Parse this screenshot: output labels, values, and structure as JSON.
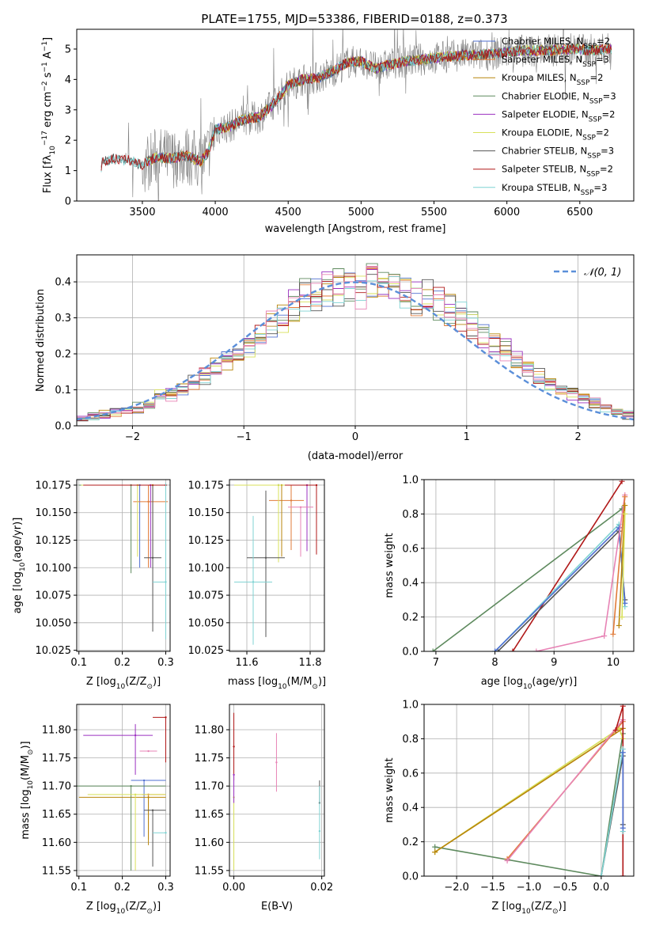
{
  "title": "PLATE=1755, MJD=53386, FIBERID=0188, z=0.373",
  "colors": {
    "Chabrier MILES": "#4f6fd0",
    "Salpeter MILES": "#e07b39",
    "Kroupa MILES": "#b8860b",
    "Chabrier ELODIE": "#5e8a5e",
    "Salpeter ELODIE": "#9b30c0",
    "Kroupa ELODIE": "#d8e05a",
    "Chabrier STELIB": "#555555",
    "Salpeter STELIB": "#b01818",
    "Kroupa STELIB": "#7fd3d3",
    "pink": "#e783b5",
    "data": "#808080",
    "gaussian": "#5b8fd9"
  },
  "chart_data": [
    {
      "id": "spectrum",
      "type": "line",
      "title": "PLATE=1755, MJD=53386, FIBERID=0188, z=0.373",
      "xlabel": "wavelength [Angstrom, rest frame]",
      "ylabel_parts": [
        "Flux [f",
        "λ",
        "10",
        "−17",
        " erg cm",
        "−2",
        " s",
        "−1",
        " A",
        "−1",
        "]"
      ],
      "xlim": [
        3050,
        6870
      ],
      "ylim": [
        0,
        5.65
      ],
      "xticks": [
        3500,
        4000,
        4500,
        5000,
        5500,
        6000,
        6500
      ],
      "yticks": [
        0,
        1,
        2,
        3,
        4,
        5
      ],
      "model_continuum": {
        "x": [
          3200,
          3220,
          3300,
          3400,
          3500,
          3600,
          3700,
          3800,
          3900,
          3950,
          4000,
          4100,
          4200,
          4300,
          4400,
          4500,
          4600,
          4700,
          4800,
          4900,
          5000,
          5100,
          5200,
          5300,
          5400,
          5500,
          5600,
          5700,
          5800,
          5900,
          6000,
          6100,
          6200,
          6300,
          6400,
          6500,
          6600,
          6700
        ],
        "y": [
          0.0,
          1.25,
          1.4,
          1.35,
          1.2,
          1.45,
          1.4,
          1.5,
          1.3,
          1.6,
          2.35,
          2.45,
          2.7,
          2.75,
          3.2,
          3.8,
          4.0,
          4.05,
          4.25,
          4.55,
          4.6,
          4.35,
          4.5,
          4.6,
          4.65,
          4.7,
          4.75,
          4.8,
          4.8,
          4.85,
          4.9,
          4.95,
          4.95,
          4.95,
          5.0,
          5.0,
          4.95,
          5.0
        ]
      },
      "legend": [
        {
          "imf": "Chabrier",
          "lib": "MILES",
          "n": "2"
        },
        {
          "imf": "Salpeter",
          "lib": "MILES",
          "n": "3"
        },
        {
          "imf": "Kroupa",
          "lib": "MILES",
          "n": "2"
        },
        {
          "imf": "Chabrier",
          "lib": "ELODIE",
          "n": "3"
        },
        {
          "imf": "Salpeter",
          "lib": "ELODIE",
          "n": "2"
        },
        {
          "imf": "Kroupa",
          "lib": "ELODIE",
          "n": "2"
        },
        {
          "imf": "Chabrier",
          "lib": "STELIB",
          "n": "3"
        },
        {
          "imf": "Salpeter",
          "lib": "STELIB",
          "n": "2"
        },
        {
          "imf": "Kroupa",
          "lib": "STELIB",
          "n": "3"
        }
      ],
      "legend_sub": "SSP"
    },
    {
      "id": "residuals",
      "type": "histogram",
      "xlabel": "(data-model)/error",
      "ylabel": "Normed distribution",
      "xlim": [
        -2.5,
        2.5
      ],
      "ylim": [
        0,
        0.475
      ],
      "xticks": [
        -2,
        -1,
        0,
        1,
        2
      ],
      "yticks": [
        0.0,
        0.1,
        0.2,
        0.3,
        0.4
      ],
      "legend": "𝒩(0, 1)",
      "bin_edges": [
        -2.5,
        -2.4,
        -2.3,
        -2.2,
        -2.1,
        -2.0,
        -1.9,
        -1.8,
        -1.7,
        -1.6,
        -1.5,
        -1.4,
        -1.3,
        -1.2,
        -1.1,
        -1.0,
        -0.9,
        -0.8,
        -0.7,
        -0.6,
        -0.5,
        -0.4,
        -0.3,
        -0.2,
        -0.1,
        0.0,
        0.1,
        0.2,
        0.3,
        0.4,
        0.5,
        0.6,
        0.7,
        0.8,
        0.9,
        1.0,
        1.1,
        1.2,
        1.3,
        1.4,
        1.5,
        1.6,
        1.7,
        1.8,
        1.9,
        2.0,
        2.1,
        2.2,
        2.3,
        2.4,
        2.5
      ],
      "density": [
        0.02,
        0.025,
        0.03,
        0.04,
        0.045,
        0.05,
        0.06,
        0.08,
        0.09,
        0.1,
        0.12,
        0.14,
        0.16,
        0.18,
        0.2,
        0.22,
        0.25,
        0.28,
        0.3,
        0.33,
        0.36,
        0.37,
        0.38,
        0.39,
        0.38,
        0.38,
        0.39,
        0.39,
        0.38,
        0.37,
        0.36,
        0.36,
        0.34,
        0.32,
        0.3,
        0.28,
        0.25,
        0.23,
        0.21,
        0.18,
        0.16,
        0.14,
        0.12,
        0.1,
        0.09,
        0.08,
        0.06,
        0.05,
        0.04,
        0.03
      ]
    },
    {
      "id": "age_vs_Z",
      "type": "scatter",
      "xlabel_parts": [
        "Z [log",
        "10",
        "(Z/Z",
        "⊙",
        ")]"
      ],
      "ylabel_parts": [
        "age  [log",
        "10",
        "(age/yr)]"
      ],
      "xlim": [
        0.095,
        0.31
      ],
      "ylim": [
        10.024,
        10.18
      ],
      "xticks": [
        0.1,
        0.2,
        0.3
      ],
      "yticks": [
        10.025,
        10.05,
        10.075,
        10.1,
        10.125,
        10.15,
        10.175
      ],
      "points": [
        {
          "lib": "Chabrier MILES",
          "x": 0.24,
          "y": 10.175,
          "xerr": [
            0.14,
            0.06
          ],
          "yerr": [
            0.075,
            0.0
          ]
        },
        {
          "lib": "Salpeter MILES",
          "x": 0.26,
          "y": 10.16,
          "xerr": [
            0.035,
            0.045
          ],
          "yerr": [
            0.06,
            0.015
          ]
        },
        {
          "lib": "Kroupa MILES",
          "x": 0.27,
          "y": 10.175,
          "xerr": [
            0.17,
            0.03
          ],
          "yerr": [
            0.065,
            0.0
          ]
        },
        {
          "lib": "Chabrier ELODIE",
          "x": 0.22,
          "y": 10.175,
          "xerr": [
            0.12,
            0.08
          ],
          "yerr": [
            0.08,
            0.0
          ]
        },
        {
          "lib": "Salpeter ELODIE",
          "x": 0.265,
          "y": 10.175,
          "xerr": [
            0.15,
            0.035
          ],
          "yerr": [
            0.075,
            0.0
          ]
        },
        {
          "lib": "Kroupa ELODIE",
          "x": 0.235,
          "y": 10.175,
          "xerr": [
            0.13,
            0.065
          ],
          "yerr": [
            0.065,
            0.0
          ]
        },
        {
          "lib": "Chabrier STELIB",
          "x": 0.27,
          "y": 10.109,
          "xerr": [
            0.02,
            0.02
          ],
          "yerr": [
            0.067,
            0.066
          ]
        },
        {
          "lib": "Salpeter STELIB",
          "x": 0.3,
          "y": 10.175,
          "xerr": [
            0.19,
            0.0
          ],
          "yerr": [
            0.0,
            0.0
          ]
        },
        {
          "lib": "Kroupa STELIB",
          "x": 0.3,
          "y": 10.087,
          "xerr": [
            0.03,
            0.0
          ],
          "yerr": [
            0.052,
            0.09
          ]
        }
      ]
    },
    {
      "id": "age_vs_mass",
      "type": "scatter",
      "xlabel_parts": [
        "mass [log",
        "10",
        "(M/M",
        "⊙",
        ")]"
      ],
      "xlim": [
        11.545,
        11.845
      ],
      "ylim": [
        10.024,
        10.18
      ],
      "xticks": [
        11.6,
        11.8
      ],
      "yticks": [
        10.025,
        10.05,
        10.075,
        10.1,
        10.125,
        10.15,
        10.175
      ],
      "points": [
        {
          "lib": "Chabrier MILES",
          "x": 11.7,
          "y": 10.175,
          "xerr": [
            0.12,
            0.1
          ],
          "yerr": [
            0.07,
            0.0
          ]
        },
        {
          "lib": "Salpeter MILES",
          "x": 11.74,
          "y": 10.161,
          "xerr": [
            0.07,
            0.04
          ],
          "yerr": [
            0.045,
            0.014
          ]
        },
        {
          "lib": "Kroupa MILES",
          "x": 11.71,
          "y": 10.175,
          "xerr": [
            0.14,
            0.08
          ],
          "yerr": [
            0.065,
            0.0
          ]
        },
        {
          "lib": "Chabrier ELODIE",
          "x": 11.7,
          "y": 10.175,
          "xerr": [
            0.12,
            0.1
          ],
          "yerr": [
            0.065,
            0.0
          ]
        },
        {
          "lib": "Salpeter ELODIE",
          "x": 11.79,
          "y": 10.175,
          "xerr": [
            0.13,
            0.03
          ],
          "yerr": [
            0.06,
            0.0
          ]
        },
        {
          "lib": "Kroupa ELODIE",
          "x": 11.7,
          "y": 10.175,
          "xerr": [
            0.14,
            0.1
          ],
          "yerr": [
            0.07,
            0.0
          ]
        },
        {
          "lib": "Chabrier STELIB",
          "x": 11.66,
          "y": 10.109,
          "xerr": [
            0.06,
            0.06
          ],
          "yerr": [
            0.072,
            0.061
          ]
        },
        {
          "lib": "Salpeter STELIB",
          "x": 11.82,
          "y": 10.175,
          "xerr": [
            0.1,
            0.0
          ],
          "yerr": [
            0.063,
            0.0
          ]
        },
        {
          "lib": "Kroupa STELIB",
          "x": 11.62,
          "y": 10.087,
          "xerr": [
            0.06,
            0.06
          ],
          "yerr": [
            0.057,
            0.06
          ]
        },
        {
          "lib": "pink",
          "x": 11.77,
          "y": 10.155,
          "xerr": [
            0.04,
            0.04
          ],
          "yerr": [
            0.045,
            0.0
          ]
        }
      ]
    },
    {
      "id": "massweight_vs_age",
      "type": "line",
      "xlabel_parts": [
        "age  [log",
        "10",
        "(age/yr)]"
      ],
      "ylabel": "mass weight",
      "xlim": [
        6.8,
        10.35
      ],
      "ylim": [
        0,
        1
      ],
      "xticks": [
        7,
        8,
        9,
        10
      ],
      "yticks": [
        0.0,
        0.2,
        0.4,
        0.6,
        0.8,
        1.0
      ],
      "series": [
        {
          "lib": "Chabrier ELODIE",
          "x": [
            6.95,
            10.15
          ],
          "y": [
            0.0,
            0.83
          ]
        },
        {
          "lib": "Salpeter STELIB",
          "x": [
            8.3,
            10.15
          ],
          "y": [
            0.0,
            0.99
          ]
        },
        {
          "lib": "Chabrier STELIB",
          "x": [
            8.05,
            10.1,
            10.2
          ],
          "y": [
            0.0,
            0.7,
            0.3
          ]
        },
        {
          "lib": "Kroupa STELIB",
          "x": [
            8.0,
            10.1,
            10.2
          ],
          "y": [
            0.0,
            0.74,
            0.26
          ]
        },
        {
          "lib": "Chabrier MILES",
          "x": [
            8.0,
            10.1,
            10.2
          ],
          "y": [
            0.0,
            0.72,
            0.28
          ]
        },
        {
          "lib": "pink",
          "x": [
            8.7,
            9.85,
            10.2
          ],
          "y": [
            0.0,
            0.09,
            0.91
          ]
        },
        {
          "lib": "Salpeter MILES",
          "x": [
            10.0,
            10.2
          ],
          "y": [
            0.1,
            0.9
          ]
        },
        {
          "lib": "Kroupa MILES",
          "x": [
            10.1,
            10.2
          ],
          "y": [
            0.15,
            0.85
          ]
        },
        {
          "lib": "Kroupa ELODIE",
          "x": [
            10.15,
            10.2
          ],
          "y": [
            0.2,
            0.8
          ]
        }
      ]
    },
    {
      "id": "mass_vs_Z",
      "type": "scatter",
      "xlabel_parts": [
        "Z [log",
        "10",
        "(Z/Z",
        "⊙",
        ")]"
      ],
      "ylabel_parts": [
        "mass [log",
        "10",
        "(M/M",
        "⊙",
        ")]"
      ],
      "xlim": [
        0.095,
        0.31
      ],
      "ylim": [
        11.54,
        11.845
      ],
      "xticks": [
        0.1,
        0.2,
        0.3
      ],
      "yticks": [
        11.55,
        11.6,
        11.65,
        11.7,
        11.75,
        11.8
      ],
      "points": [
        {
          "lib": "Chabrier MILES",
          "x": 0.25,
          "y": 11.71,
          "xerr": [
            0.03,
            0.05
          ],
          "yerr": [
            0.1,
            0.0
          ]
        },
        {
          "lib": "Salpeter MILES",
          "x": 0.26,
          "y": 11.685,
          "xerr": [
            0.015,
            0.04
          ],
          "yerr": [
            0.08,
            0.0
          ]
        },
        {
          "lib": "Kroupa MILES",
          "x": 0.26,
          "y": 11.68,
          "xerr": [
            0.16,
            0.04
          ],
          "yerr": [
            0.085,
            0.0
          ]
        },
        {
          "lib": "Chabrier ELODIE",
          "x": 0.22,
          "y": 11.7,
          "xerr": [
            0.125,
            0.08
          ],
          "yerr": [
            0.15,
            0.0
          ]
        },
        {
          "lib": "Salpeter ELODIE",
          "x": 0.23,
          "y": 11.79,
          "xerr": [
            0.12,
            0.04
          ],
          "yerr": [
            0.07,
            0.02
          ]
        },
        {
          "lib": "Kroupa ELODIE",
          "x": 0.23,
          "y": 11.685,
          "xerr": [
            0.11,
            0.07
          ],
          "yerr": [
            0.135,
            0.0
          ]
        },
        {
          "lib": "Chabrier STELIB",
          "x": 0.27,
          "y": 11.657,
          "xerr": [
            0.02,
            0.03
          ],
          "yerr": [
            0.1,
            0.0
          ]
        },
        {
          "lib": "Salpeter STELIB",
          "x": 0.3,
          "y": 11.822,
          "xerr": [
            0.03,
            0.0
          ],
          "yerr": [
            0.08,
            0.0
          ]
        },
        {
          "lib": "Kroupa STELIB",
          "x": 0.3,
          "y": 11.617,
          "xerr": [
            0.03,
            0.0
          ],
          "yerr": [
            0.0,
            0.0
          ]
        },
        {
          "lib": "pink",
          "x": 0.26,
          "y": 11.762,
          "xerr": [
            0.02,
            0.02
          ],
          "yerr": [
            0.0,
            0.0
          ]
        }
      ]
    },
    {
      "id": "mass_vs_EBV",
      "type": "scatter",
      "xlabel": "E(B-V)",
      "xlim": [
        -0.001,
        0.0206
      ],
      "ylim": [
        11.54,
        11.845
      ],
      "xticks": [
        0.0,
        0.02
      ],
      "xtick_labels": [
        "0.00",
        "0.02"
      ],
      "yticks": [
        11.55,
        11.6,
        11.65,
        11.7,
        11.75,
        11.8
      ],
      "points": [
        {
          "lib": "Salpeter STELIB",
          "x": 0.0,
          "y": 11.77,
          "yerr": [
            0.06,
            0.06
          ]
        },
        {
          "lib": "Kroupa ELODIE",
          "x": 0.0,
          "y": 11.68,
          "yerr": [
            0.13,
            0.0
          ]
        },
        {
          "lib": "Salpeter ELODIE",
          "x": 0.0,
          "y": 11.72,
          "yerr": [
            0.05,
            0.0
          ]
        },
        {
          "lib": "pink",
          "x": 0.0097,
          "y": 11.742,
          "yerr": [
            0.052,
            0.052
          ]
        },
        {
          "lib": "Chabrier STELIB",
          "x": 0.0195,
          "y": 11.67,
          "yerr": [
            0.0,
            0.04
          ]
        },
        {
          "lib": "Kroupa STELIB",
          "x": 0.0195,
          "y": 11.62,
          "yerr": [
            0.05,
            0.08
          ]
        }
      ]
    },
    {
      "id": "massweight_vs_Z",
      "type": "line",
      "xlabel_parts": [
        "Z [log",
        "10",
        "(Z/Z",
        "⊙",
        ")]"
      ],
      "ylabel": "mass weight",
      "xlim": [
        -2.45,
        0.45
      ],
      "ylim": [
        0,
        1
      ],
      "xticks": [
        -2.0,
        -1.5,
        -1.0,
        -0.5,
        0.0
      ],
      "xtick_labels": [
        "−2.0",
        "−1.5",
        "−1.0",
        "−0.5",
        "0.0"
      ],
      "yticks": [
        0.0,
        0.2,
        0.4,
        0.6,
        0.8,
        1.0
      ],
      "series": [
        {
          "lib": "Chabrier ELODIE",
          "x": [
            -2.3,
            0.0,
            0.3
          ],
          "y": [
            0.17,
            0.0,
            0.83
          ]
        },
        {
          "lib": "Kroupa ELODIE",
          "x": [
            -2.3,
            0.25,
            0.3
          ],
          "y": [
            0.14,
            0.86,
            0.8
          ]
        },
        {
          "lib": "Kroupa MILES",
          "x": [
            -2.3,
            0.3
          ],
          "y": [
            0.14,
            0.86
          ]
        },
        {
          "lib": "Salpeter MILES",
          "x": [
            -1.3,
            0.3
          ],
          "y": [
            0.1,
            0.9
          ]
        },
        {
          "lib": "pink",
          "x": [
            -1.3,
            0.3,
            0.3
          ],
          "y": [
            0.09,
            0.91,
            0.0
          ]
        },
        {
          "lib": "Salpeter STELIB",
          "x": [
            0.3,
            0.3,
            0.2
          ],
          "y": [
            0.0,
            0.99,
            0.85
          ]
        },
        {
          "lib": "Chabrier STELIB",
          "x": [
            0.0,
            0.3,
            0.3
          ],
          "y": [
            0.0,
            0.7,
            0.3
          ]
        },
        {
          "lib": "Kroupa STELIB",
          "x": [
            0.0,
            0.3,
            0.3
          ],
          "y": [
            0.0,
            0.74,
            0.26
          ]
        },
        {
          "lib": "Chabrier MILES",
          "x": [
            0.3,
            0.3
          ],
          "y": [
            0.28,
            0.72
          ]
        }
      ]
    }
  ]
}
